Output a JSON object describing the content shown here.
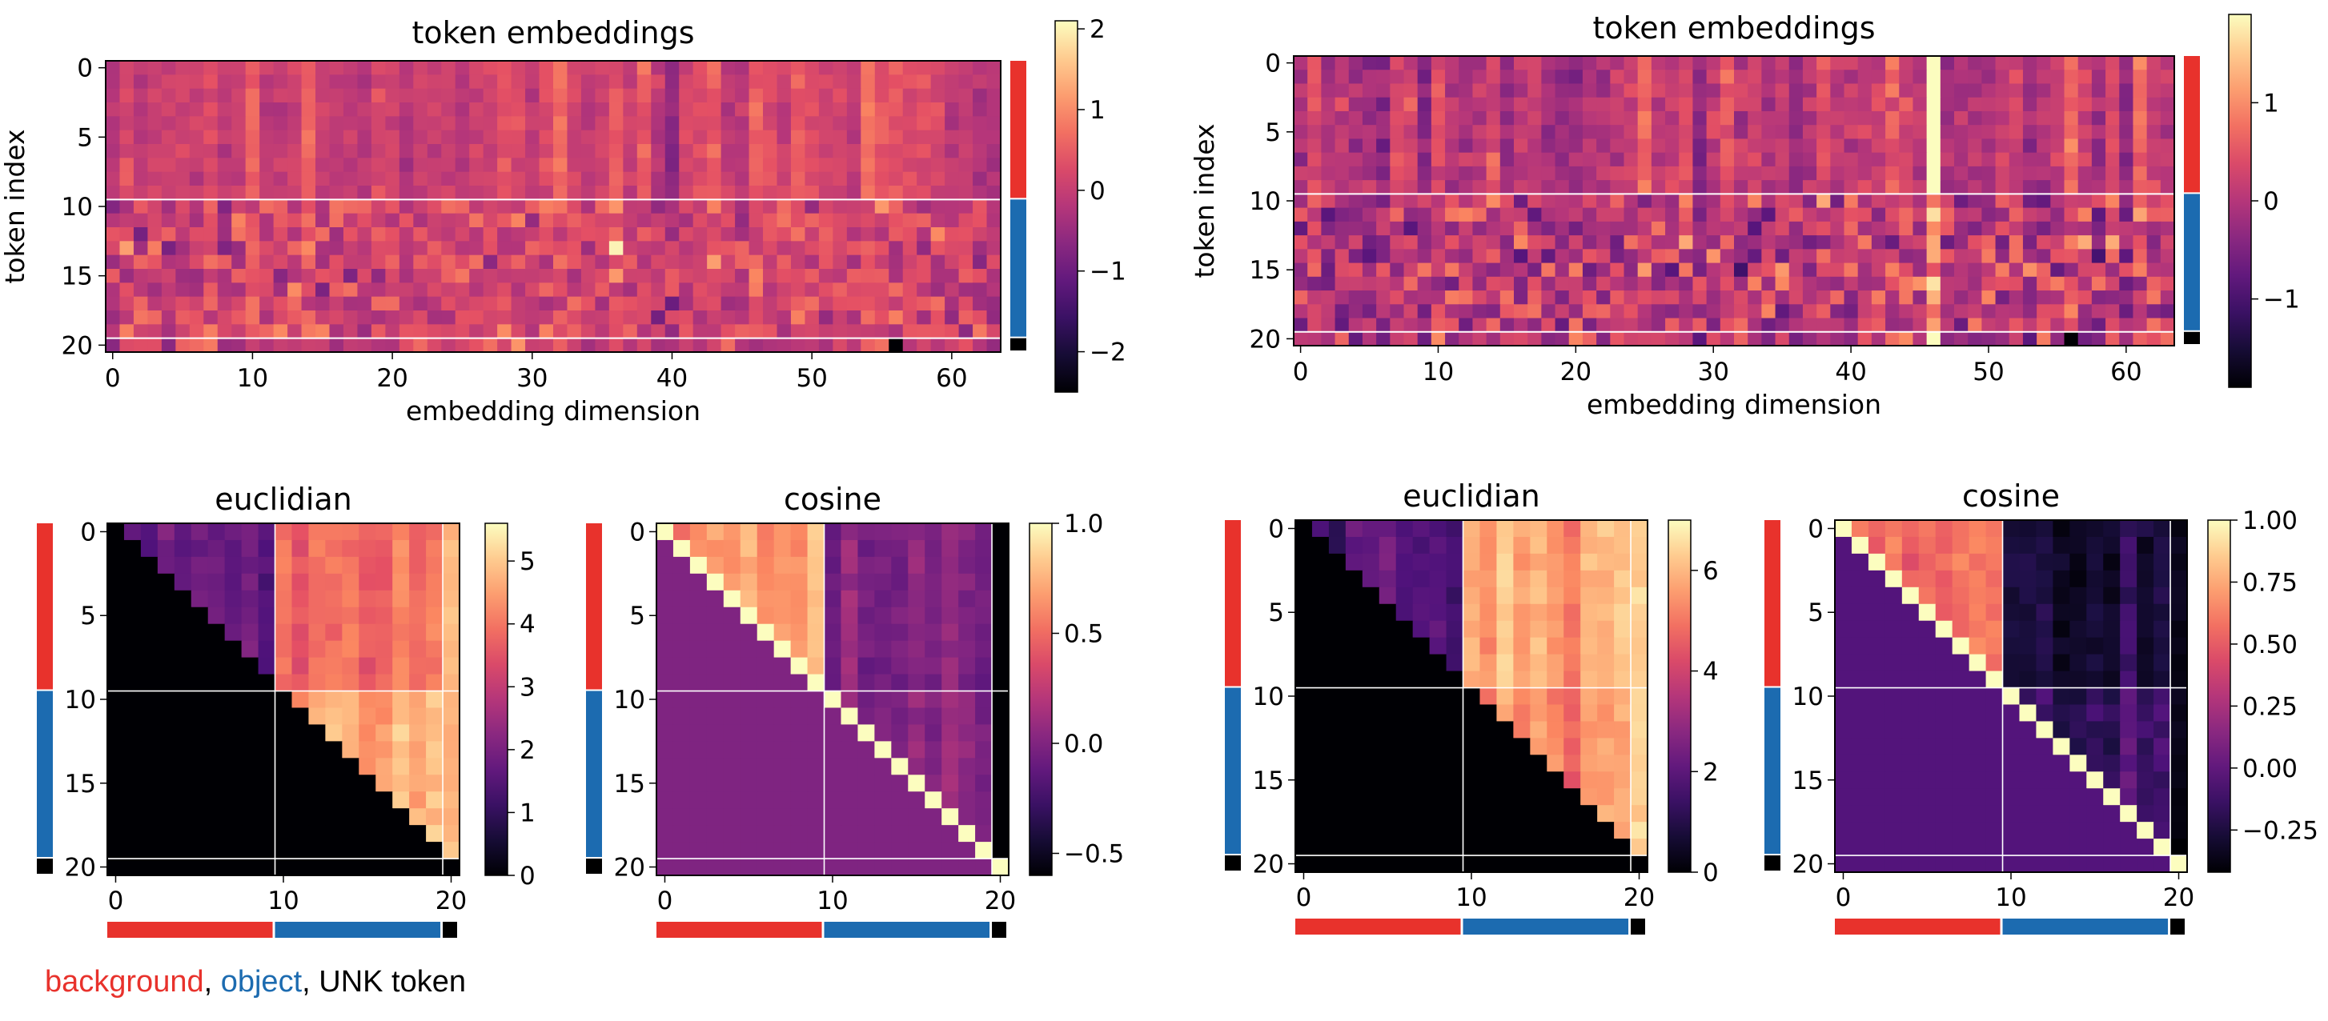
{
  "figure": {
    "legend": {
      "background": "background",
      "sep1": ", ",
      "object": "object",
      "sep2": ", ",
      "unk": "UNK token"
    },
    "group_colors": {
      "background": "#e8322c",
      "object": "#1c6bb0",
      "unk": "#000000"
    },
    "colormap": "magma",
    "tokens": {
      "background": 10,
      "object": 10,
      "unk": 1
    }
  },
  "chart_data": [
    {
      "id": "left-embeddings",
      "type": "heatmap",
      "title": "token embeddings",
      "xlabel": "embedding dimension",
      "ylabel": "token index",
      "rows": 21,
      "cols": 64,
      "xticks": [
        0,
        10,
        20,
        30,
        40,
        50,
        60
      ],
      "yticks": [
        0,
        5,
        10,
        15,
        20
      ],
      "vlim": [
        -2.5,
        2.1
      ],
      "colorbar_ticks": [
        2,
        1,
        0,
        -1,
        -2
      ],
      "colorbar_labels": [
        "2",
        "1",
        "0",
        "−1",
        "−2"
      ],
      "separators_after_rows": [
        9,
        19
      ],
      "seed": 11,
      "spread": 0.6,
      "center": 0.15
    },
    {
      "id": "right-embeddings",
      "type": "heatmap",
      "title": "token embeddings",
      "xlabel": "embedding dimension",
      "ylabel": "token index",
      "rows": 21,
      "cols": 64,
      "xticks": [
        0,
        10,
        20,
        30,
        40,
        50,
        60
      ],
      "yticks": [
        0,
        5,
        10,
        15,
        20
      ],
      "vlim": [
        -1.9,
        1.9
      ],
      "colorbar_ticks": [
        1,
        0,
        -1
      ],
      "colorbar_labels": [
        "1",
        "0",
        "−1"
      ],
      "separators_after_rows": [
        9,
        19
      ],
      "seed": 23,
      "spread": 0.75,
      "center": 0.1
    },
    {
      "id": "left-euclidian",
      "type": "heatmap",
      "title": "euclidian",
      "rows": 21,
      "cols": 21,
      "ticks": [
        0,
        5,
        10,
        15,
        20
      ],
      "xticks": [
        0,
        10,
        20
      ],
      "vlim": [
        0,
        5.6
      ],
      "colorbar_ticks": [
        0,
        1,
        2,
        3,
        4,
        5
      ],
      "colorbar_labels": [
        "0",
        "1",
        "2",
        "3",
        "4",
        "5"
      ],
      "blocks": {
        "bg_bg": 1.6,
        "bg_obj": 3.9,
        "obj_obj": 4.7,
        "unk": 5.3
      },
      "lower_triangle": "zero",
      "seed": 31
    },
    {
      "id": "left-cosine",
      "type": "heatmap",
      "title": "cosine",
      "rows": 21,
      "cols": 21,
      "ticks": [
        0,
        5,
        10,
        15,
        20
      ],
      "xticks": [
        0,
        10,
        20
      ],
      "vlim": [
        -0.6,
        1.0
      ],
      "colorbar_ticks": [
        1.0,
        0.5,
        0.0,
        -0.5
      ],
      "colorbar_labels": [
        "1.0",
        "0.5",
        "0.0",
        "−0.5"
      ],
      "blocks": {
        "bg_bg": 0.68,
        "bg_obj": 0.0,
        "obj_obj": 0.03,
        "unk": -0.6
      },
      "lower_triangle": "fill",
      "lower_value": 0.0,
      "seed": 37
    },
    {
      "id": "right-euclidian",
      "type": "heatmap",
      "title": "euclidian",
      "rows": 21,
      "cols": 21,
      "ticks": [
        0,
        5,
        10,
        15,
        20
      ],
      "xticks": [
        0,
        10,
        20
      ],
      "vlim": [
        0,
        7.0
      ],
      "colorbar_ticks": [
        0,
        2,
        4,
        6
      ],
      "colorbar_labels": [
        "0",
        "2",
        "4",
        "6"
      ],
      "blocks": {
        "bg_bg": 1.8,
        "bg_obj": 5.7,
        "obj_obj": 5.3,
        "unk": 6.3
      },
      "lower_triangle": "zero",
      "seed": 41
    },
    {
      "id": "right-cosine",
      "type": "heatmap",
      "title": "cosine",
      "rows": 21,
      "cols": 21,
      "ticks": [
        0,
        5,
        10,
        15,
        20
      ],
      "xticks": [
        0,
        10,
        20
      ],
      "vlim": [
        -0.42,
        1.0
      ],
      "colorbar_ticks": [
        1.0,
        0.75,
        0.5,
        0.25,
        0.0,
        -0.25
      ],
      "colorbar_labels": [
        "1.00",
        "0.75",
        "0.50",
        "0.25",
        "0.00",
        "−0.25"
      ],
      "blocks": {
        "bg_bg": 0.6,
        "bg_obj": -0.22,
        "obj_obj": -0.08,
        "unk": -0.3
      },
      "lower_triangle": "fill",
      "lower_value": -0.05,
      "seed": 53
    }
  ]
}
